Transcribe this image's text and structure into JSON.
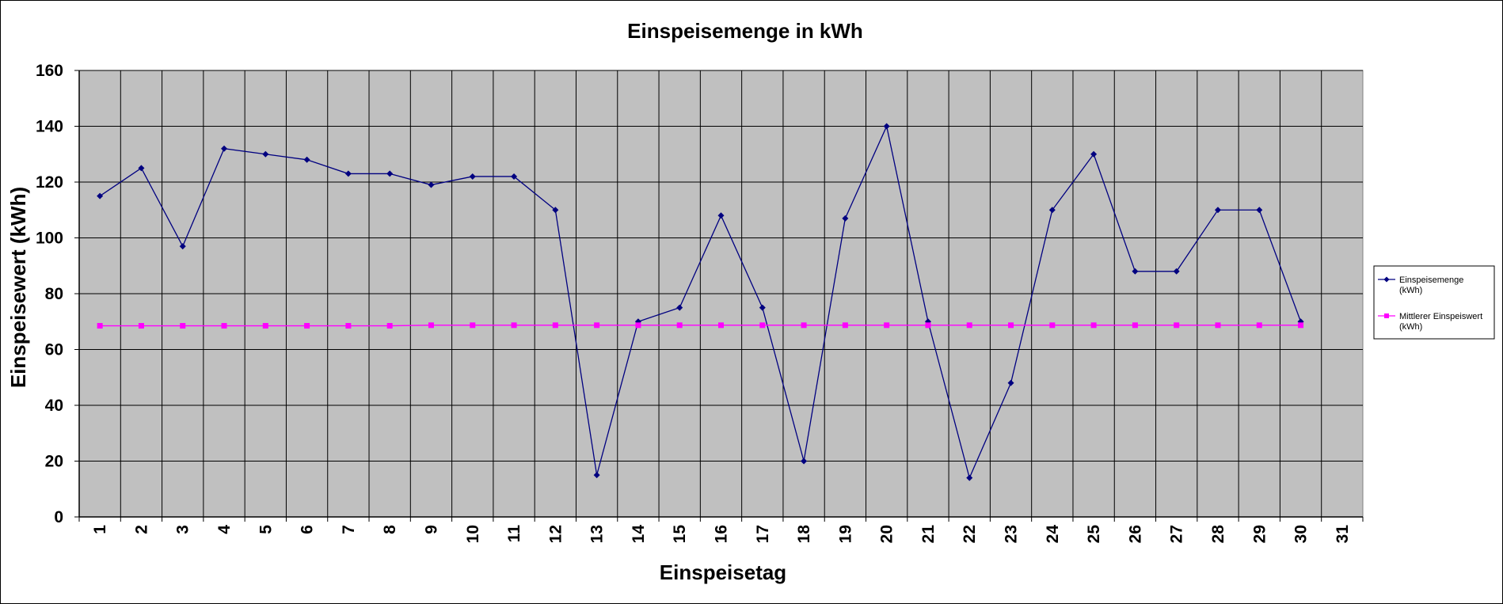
{
  "chart_data": {
    "type": "line",
    "title": "Einspeisemenge in kWh",
    "xlabel": "Einspeisetag",
    "ylabel": "Einspeisewert  (kWh)",
    "categories": [
      "1",
      "2",
      "3",
      "4",
      "5",
      "6",
      "7",
      "8",
      "9",
      "10",
      "11",
      "12",
      "13",
      "14",
      "15",
      "16",
      "17",
      "18",
      "19",
      "20",
      "21",
      "22",
      "23",
      "24",
      "25",
      "26",
      "27",
      "28",
      "29",
      "30",
      "31"
    ],
    "ylim": [
      0,
      160
    ],
    "yticks": [
      0,
      20,
      40,
      60,
      80,
      100,
      120,
      140,
      160
    ],
    "grid": true,
    "plot_background": "#c0c0c0",
    "legend_position": "right",
    "series": [
      {
        "name_lines": [
          "Einspeisemenge",
          "(kWh)"
        ],
        "color": "#000080",
        "marker": "diamond",
        "values": [
          115,
          125,
          97,
          132,
          130,
          128,
          123,
          123,
          119,
          122,
          122,
          110,
          15,
          70,
          75,
          108,
          75,
          20,
          107,
          140,
          70,
          14,
          48,
          110,
          130,
          88,
          88,
          110,
          110,
          70,
          null
        ]
      },
      {
        "name_lines": [
          "Mittlerer Einspeiswert",
          "(kWh)"
        ],
        "color": "#ff00ff",
        "marker": "square",
        "values": [
          68.5,
          68.5,
          68.5,
          68.5,
          68.5,
          68.5,
          68.5,
          68.5,
          68.7,
          68.7,
          68.7,
          68.7,
          68.7,
          68.7,
          68.7,
          68.7,
          68.7,
          68.7,
          68.7,
          68.7,
          68.7,
          68.7,
          68.7,
          68.7,
          68.7,
          68.7,
          68.7,
          68.7,
          68.7,
          68.7,
          null
        ]
      }
    ]
  }
}
